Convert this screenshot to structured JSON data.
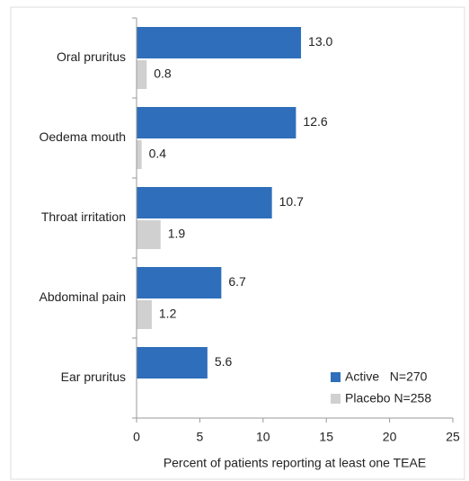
{
  "chart_data": {
    "type": "bar",
    "orientation": "horizontal",
    "categories": [
      "Oral pruritus",
      "Oedema mouth",
      "Throat irritation",
      "Abdominal pain",
      "Ear pruritus"
    ],
    "series": [
      {
        "name": "Active   N=270",
        "color": "#2f6eba",
        "values": [
          13.0,
          12.6,
          10.7,
          6.7,
          5.6
        ],
        "value_labels": [
          "13.0",
          "12.6",
          "10.7",
          "6.7",
          "5.6"
        ]
      },
      {
        "name": "Placebo N=258",
        "color": "#d0d0d0",
        "values": [
          0.8,
          0.4,
          1.9,
          1.2,
          null
        ],
        "value_labels": [
          "0.8",
          "0.4",
          "1.9",
          "1.2",
          null
        ]
      }
    ],
    "xlabel": "Percent of patients reporting at least one TEAE",
    "xlim": [
      0,
      25
    ],
    "xticks": [
      0,
      5,
      10,
      15,
      20,
      25
    ],
    "legend": "lower right"
  }
}
